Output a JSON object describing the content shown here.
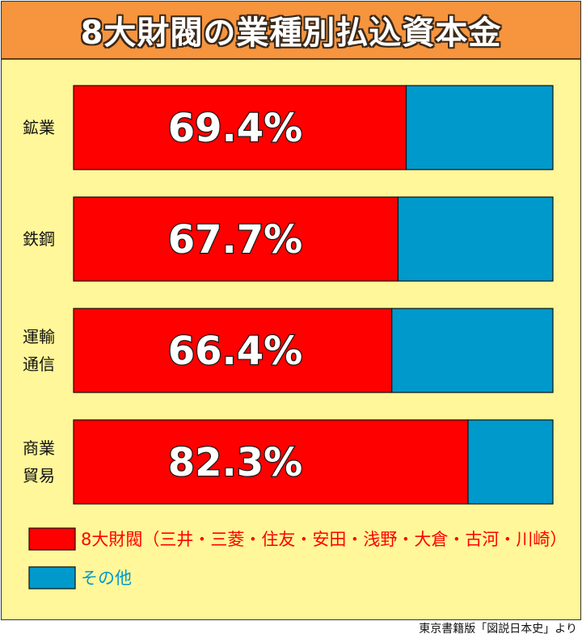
{
  "title": "8大財閥の業種別払込資本金",
  "chart_data": {
    "type": "bar",
    "orientation": "horizontal",
    "stacked": true,
    "normalized_to_percent": true,
    "categories": [
      [
        "鉱業"
      ],
      [
        "鉄鋼"
      ],
      [
        "運輸",
        "通信"
      ],
      [
        "商業",
        "貿易"
      ]
    ],
    "series": [
      {
        "name": "8大財閥（三井・三菱・住友・安田・浅野・大倉・古河・川崎）",
        "color": "#ff0000",
        "values": [
          69.4,
          67.7,
          66.4,
          82.3
        ],
        "labels": [
          "69.4%",
          "67.7%",
          "66.4%",
          "82.3%"
        ]
      },
      {
        "name": "その他",
        "color": "#0099cc",
        "values": [
          30.6,
          32.3,
          33.6,
          17.7
        ]
      }
    ],
    "xlim": [
      0,
      100
    ],
    "grid": false,
    "legend_position": "bottom-left"
  },
  "colors": {
    "title_background": "#f7943e",
    "panel_background": "#fff799",
    "zaibatsu_text": "#ff0000",
    "other_text": "#0099cc"
  },
  "source": "東京書籍版「図説日本史」より"
}
